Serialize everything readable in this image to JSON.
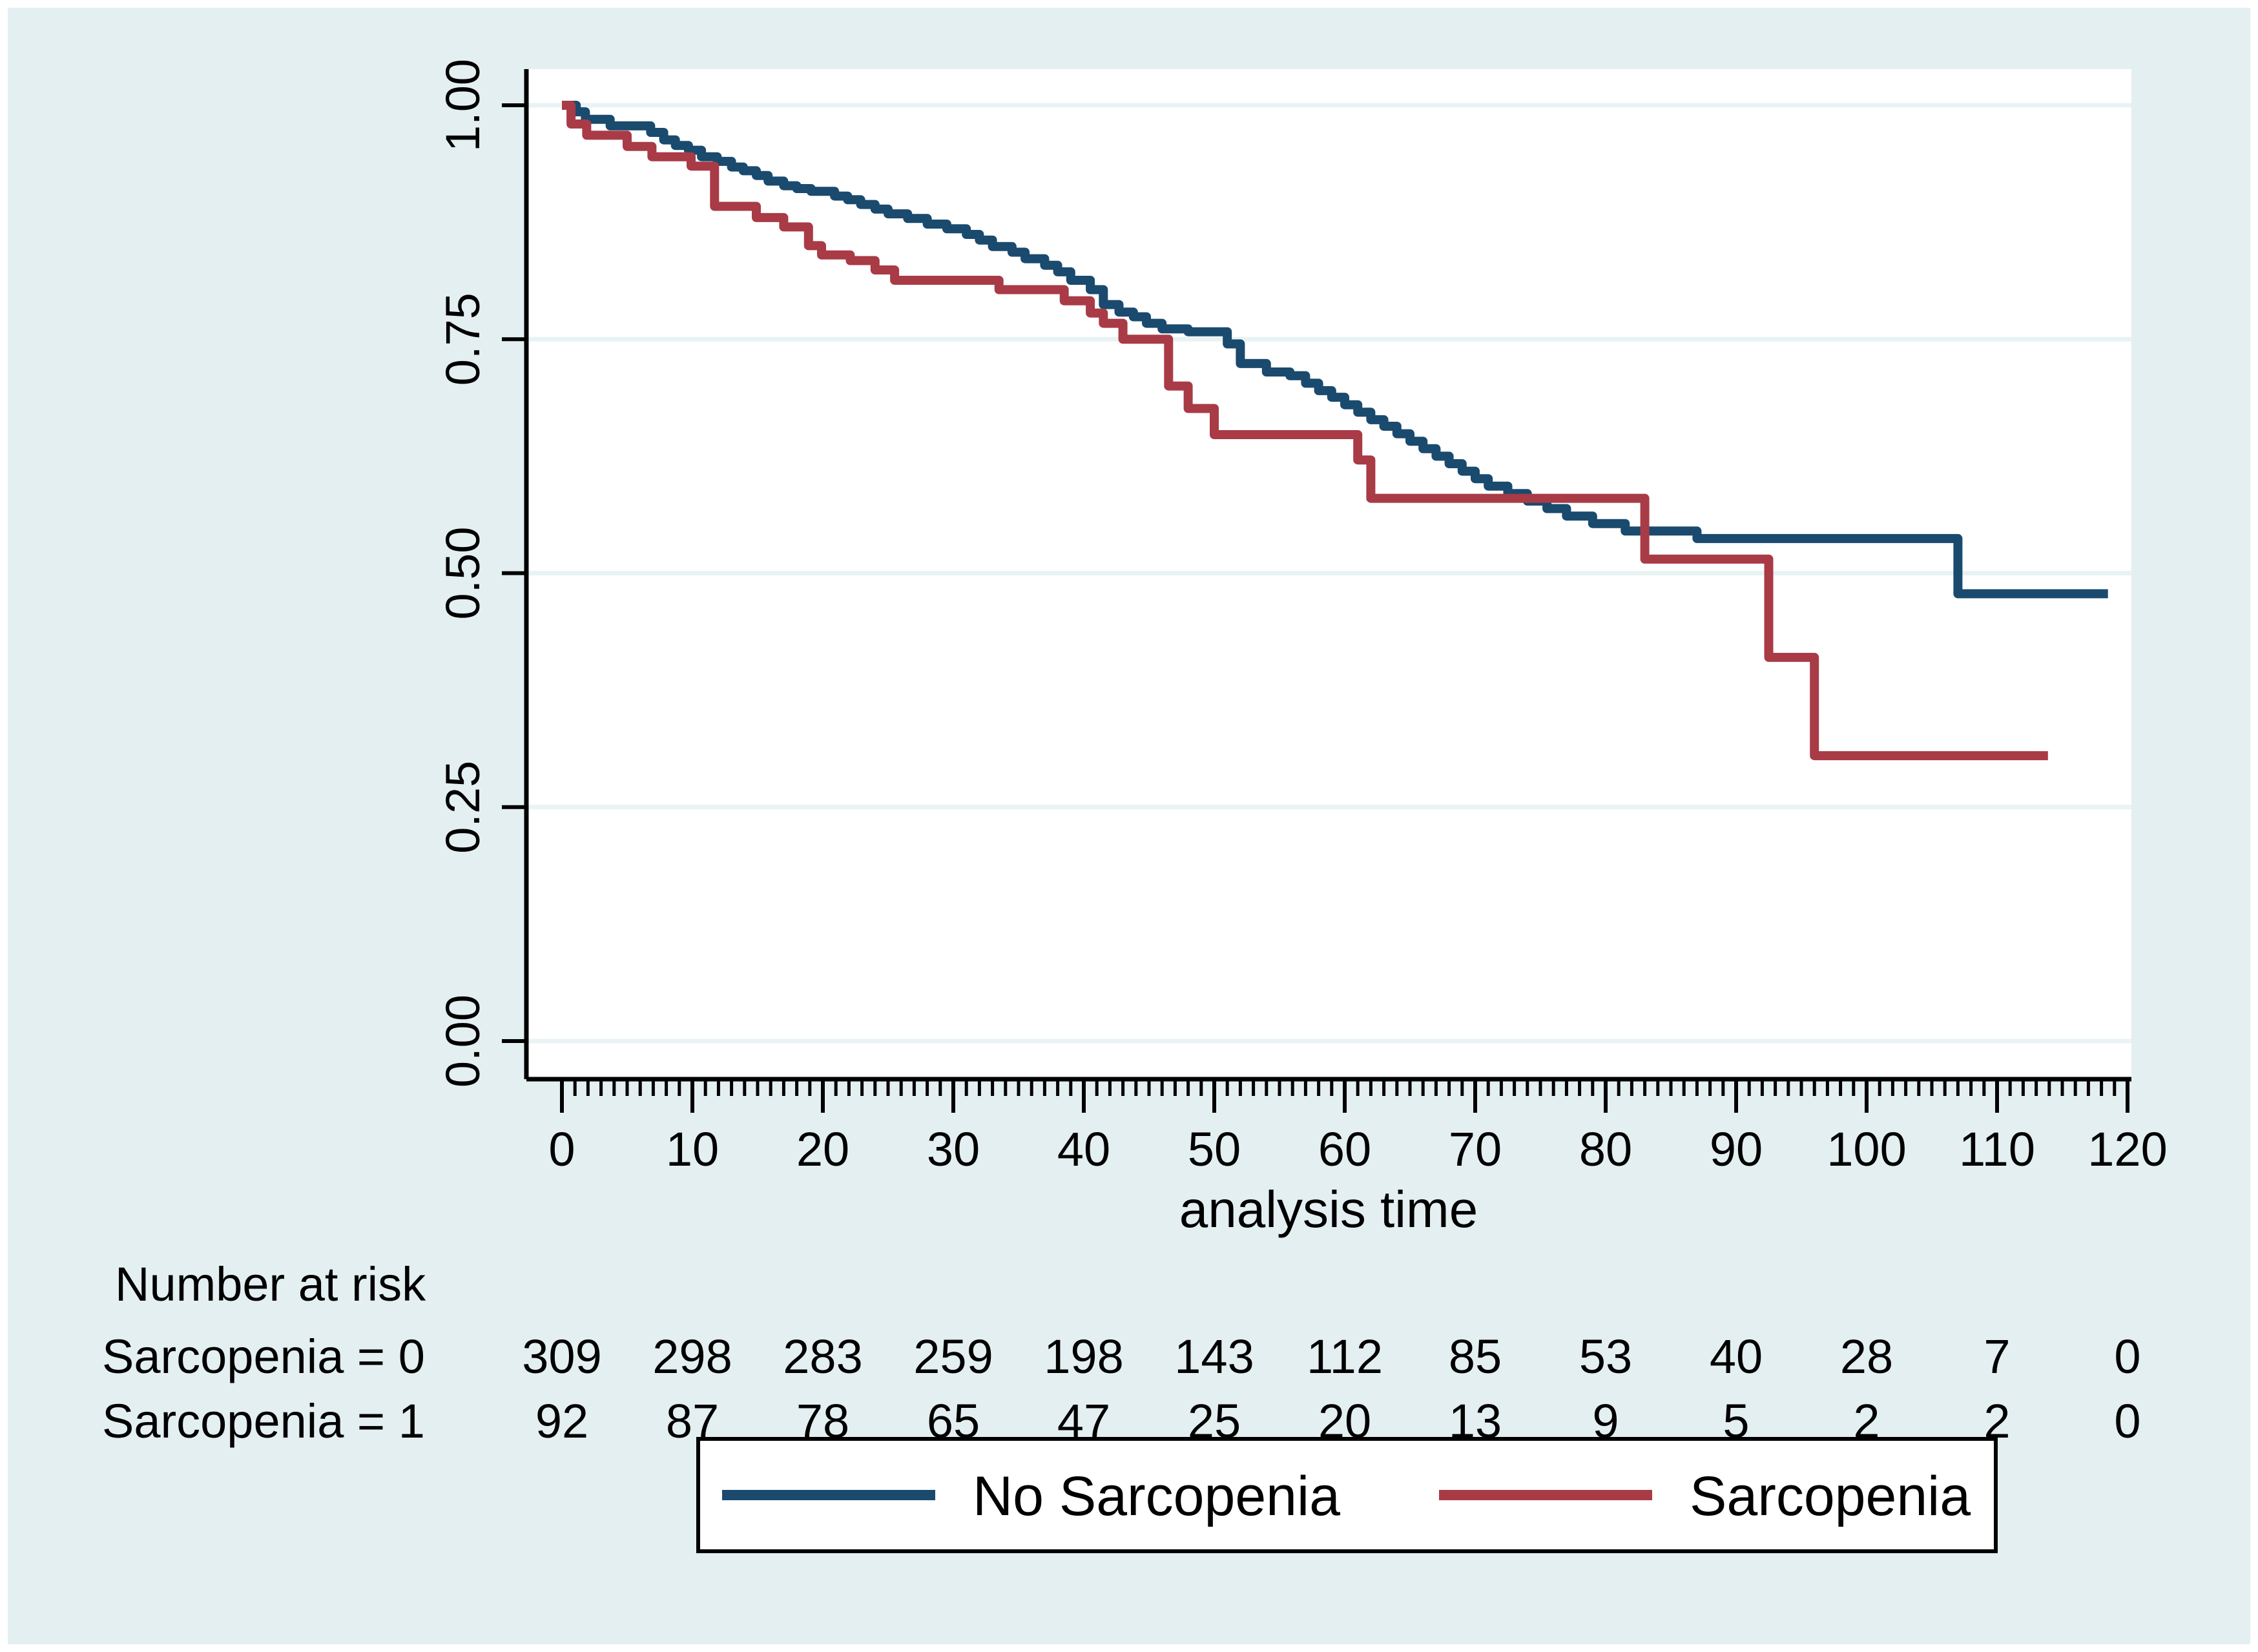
{
  "figure": {
    "background": "#e4eff1",
    "plot_background": "#ffffff",
    "grid_color": "#e9f3f4",
    "axis_color": "#000000",
    "frame_color": "#ffffff"
  },
  "chart_data": {
    "type": "line",
    "subtype": "kaplan-meier-survival-step",
    "title": "",
    "xlabel": "analysis time",
    "ylabel": "",
    "xlim": [
      -2.7,
      120.3
    ],
    "ylim": [
      -0.04,
      1.039
    ],
    "grid": "horizontal",
    "xticks": [
      0,
      10,
      20,
      30,
      40,
      50,
      60,
      70,
      80,
      90,
      100,
      110,
      120
    ],
    "xtick_labels": [
      "0",
      "10",
      "20",
      "30",
      "40",
      "50",
      "60",
      "70",
      "80",
      "90",
      "100",
      "110",
      "120"
    ],
    "minor_xtick_step": 1,
    "yticks": [
      0,
      0.25,
      0.5,
      0.75,
      1.0
    ],
    "ytick_labels": [
      "0.00",
      "0.25",
      "0.50",
      "0.75",
      "1.00"
    ],
    "legend_position": "bottom-center",
    "series": [
      {
        "name": "No Sarcopenia",
        "color": "#1a4a6e",
        "end_t": 118.5,
        "points": [
          [
            0,
            1.0
          ],
          [
            1.1,
            0.993
          ],
          [
            1.8,
            0.985
          ],
          [
            3.7,
            0.978
          ],
          [
            6.8,
            0.971
          ],
          [
            7.8,
            0.963
          ],
          [
            8.7,
            0.957
          ],
          [
            9.7,
            0.952
          ],
          [
            10.7,
            0.945
          ],
          [
            11.9,
            0.94
          ],
          [
            13,
            0.934
          ],
          [
            13.9,
            0.93
          ],
          [
            14.9,
            0.925
          ],
          [
            15.8,
            0.919
          ],
          [
            17,
            0.914
          ],
          [
            18,
            0.911
          ],
          [
            19.1,
            0.908
          ],
          [
            20.9,
            0.903
          ],
          [
            21.9,
            0.899
          ],
          [
            22.9,
            0.894
          ],
          [
            24,
            0.889
          ],
          [
            25,
            0.884
          ],
          [
            26.5,
            0.879
          ],
          [
            28,
            0.873
          ],
          [
            29.5,
            0.868
          ],
          [
            31,
            0.862
          ],
          [
            32,
            0.856
          ],
          [
            33,
            0.849
          ],
          [
            34.5,
            0.843
          ],
          [
            35.5,
            0.836
          ],
          [
            37,
            0.829
          ],
          [
            38,
            0.822
          ],
          [
            39,
            0.813
          ],
          [
            40.5,
            0.803
          ],
          [
            41.5,
            0.787
          ],
          [
            42.7,
            0.779
          ],
          [
            43.8,
            0.774
          ],
          [
            44.8,
            0.767
          ],
          [
            46,
            0.761
          ],
          [
            48,
            0.758
          ],
          [
            51,
            0.745
          ],
          [
            52,
            0.724
          ],
          [
            54,
            0.715
          ],
          [
            55.8,
            0.711
          ],
          [
            57,
            0.703
          ],
          [
            58,
            0.695
          ],
          [
            59,
            0.688
          ],
          [
            60,
            0.68
          ],
          [
            61,
            0.672
          ],
          [
            62,
            0.664
          ],
          [
            63,
            0.657
          ],
          [
            64,
            0.649
          ],
          [
            65,
            0.641
          ],
          [
            66,
            0.633
          ],
          [
            67,
            0.625
          ],
          [
            68,
            0.617
          ],
          [
            69,
            0.609
          ],
          [
            70,
            0.601
          ],
          [
            71,
            0.593
          ],
          [
            72.5,
            0.585
          ],
          [
            74,
            0.577
          ],
          [
            75.5,
            0.569
          ],
          [
            77,
            0.561
          ],
          [
            79,
            0.553
          ],
          [
            81.5,
            0.545
          ],
          [
            87,
            0.537
          ],
          [
            107,
            0.478
          ]
        ]
      },
      {
        "name": "Sarcopenia",
        "color": "#a83b46",
        "end_t": 113.9,
        "points": [
          [
            0,
            1.0
          ],
          [
            0.7,
            0.98
          ],
          [
            1.9,
            0.968
          ],
          [
            5,
            0.956
          ],
          [
            6.9,
            0.945
          ],
          [
            9.9,
            0.935
          ],
          [
            11.7,
            0.892
          ],
          [
            14.9,
            0.88
          ],
          [
            17,
            0.87
          ],
          [
            18.9,
            0.85
          ],
          [
            19.9,
            0.84
          ],
          [
            22.1,
            0.834
          ],
          [
            24,
            0.824
          ],
          [
            25.5,
            0.813
          ],
          [
            33.5,
            0.803
          ],
          [
            38.5,
            0.791
          ],
          [
            40.5,
            0.778
          ],
          [
            41.5,
            0.767
          ],
          [
            43,
            0.75
          ],
          [
            46.5,
            0.7
          ],
          [
            48,
            0.676
          ],
          [
            50,
            0.648
          ],
          [
            61,
            0.621
          ],
          [
            62,
            0.58
          ],
          [
            83,
            0.515
          ],
          [
            92.5,
            0.41
          ],
          [
            96,
            0.305
          ]
        ]
      }
    ]
  },
  "risk_table": {
    "header": "Number at risk",
    "columns": [
      0,
      10,
      20,
      30,
      40,
      50,
      60,
      70,
      80,
      90,
      100,
      110,
      120
    ],
    "rows": [
      {
        "label": "Sarcopenia = 0",
        "values": [
          "309",
          "298",
          "283",
          "259",
          "198",
          "143",
          "112",
          "85",
          "53",
          "40",
          "28",
          "7",
          "0"
        ]
      },
      {
        "label": "Sarcopenia = 1",
        "values": [
          "92",
          "87",
          "78",
          "65",
          "47",
          "25",
          "20",
          "13",
          "9",
          "5",
          "2",
          "2",
          "0"
        ]
      }
    ]
  },
  "legend": {
    "entries": [
      {
        "label": "No Sarcopenia",
        "color": "#1a4a6e"
      },
      {
        "label": "Sarcopenia",
        "color": "#a83b46"
      }
    ]
  }
}
